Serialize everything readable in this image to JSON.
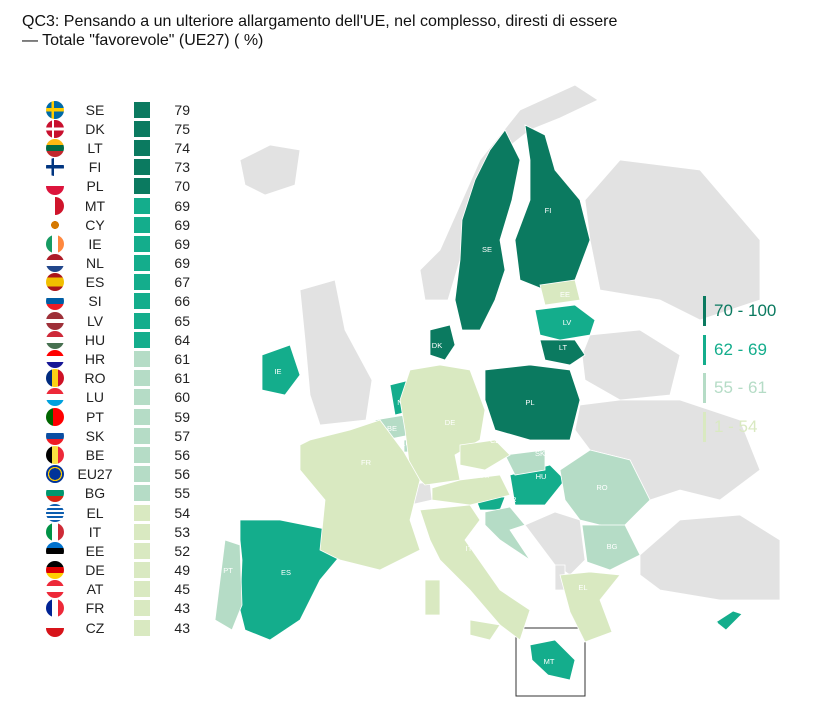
{
  "title": "QC3: Pensando a un ulteriore allargamento dell'UE, nel complesso, diresti di essere — Totale \"favorevole\" (UE27) ( %)",
  "colors": {
    "band_70_100": "#0b7a60",
    "band_62_69": "#14ad8c",
    "band_55_61": "#b5dcc6",
    "band_1_54": "#d9e9c1",
    "non_eu": "#e2e2e2"
  },
  "legend": [
    {
      "label": "70 - 100",
      "color": "#0b7a60"
    },
    {
      "label": "62 - 69",
      "color": "#14ad8c"
    },
    {
      "label": "55 - 61",
      "color": "#b5dcc6"
    },
    {
      "label": "1 - 54",
      "color": "#d9e9c1"
    }
  ],
  "countries": [
    {
      "code": "SE",
      "value": 79
    },
    {
      "code": "DK",
      "value": 75
    },
    {
      "code": "LT",
      "value": 74
    },
    {
      "code": "FI",
      "value": 73
    },
    {
      "code": "PL",
      "value": 70
    },
    {
      "code": "MT",
      "value": 69
    },
    {
      "code": "CY",
      "value": 69
    },
    {
      "code": "IE",
      "value": 69
    },
    {
      "code": "NL",
      "value": 69
    },
    {
      "code": "ES",
      "value": 67
    },
    {
      "code": "SI",
      "value": 66
    },
    {
      "code": "LV",
      "value": 65
    },
    {
      "code": "HU",
      "value": 64
    },
    {
      "code": "HR",
      "value": 61
    },
    {
      "code": "RO",
      "value": 61
    },
    {
      "code": "LU",
      "value": 60
    },
    {
      "code": "PT",
      "value": 59
    },
    {
      "code": "SK",
      "value": 57
    },
    {
      "code": "BE",
      "value": 56
    },
    {
      "code": "EU27",
      "value": 56
    },
    {
      "code": "BG",
      "value": 55
    },
    {
      "code": "EL",
      "value": 54
    },
    {
      "code": "IT",
      "value": 53
    },
    {
      "code": "EE",
      "value": 52
    },
    {
      "code": "DE",
      "value": 49
    },
    {
      "code": "AT",
      "value": 45
    },
    {
      "code": "FR",
      "value": 43
    },
    {
      "code": "CZ",
      "value": 43
    }
  ]
}
